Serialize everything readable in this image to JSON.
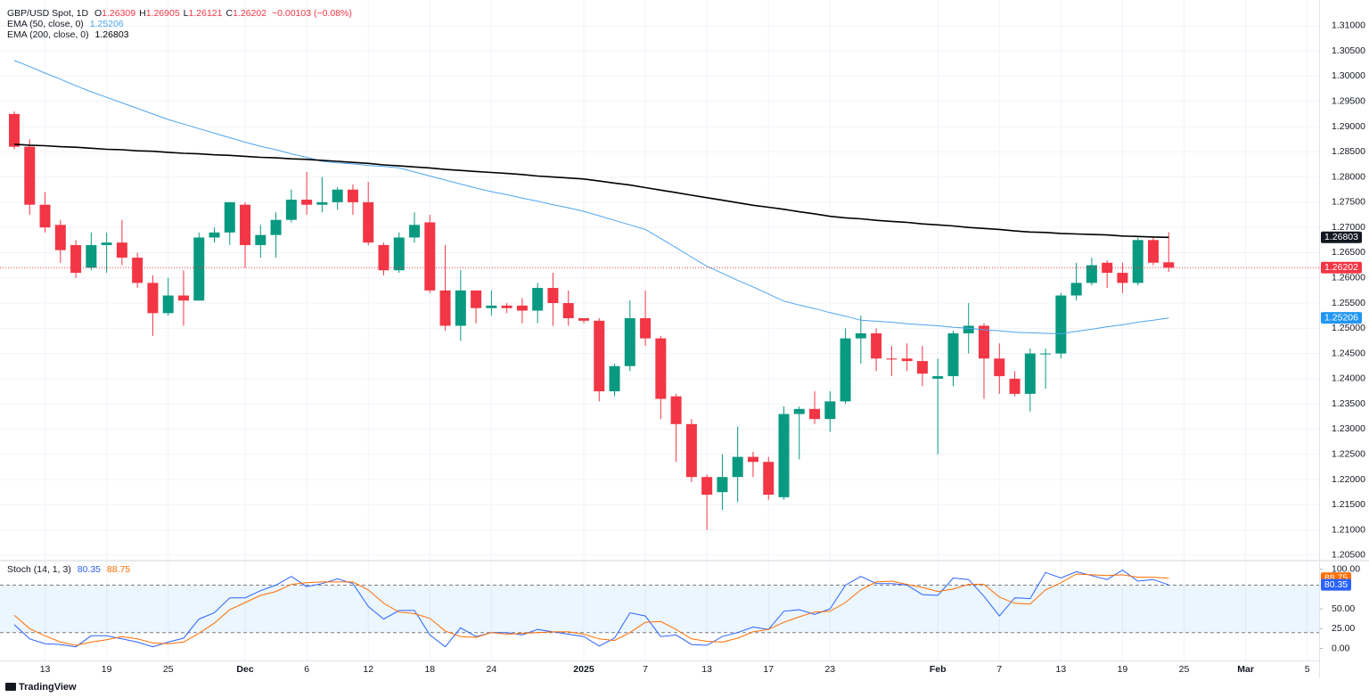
{
  "branding": "TradingView",
  "chart_data": [
    {
      "type": "candlestick",
      "title": "GBP/USD Spot, 1D",
      "ohlc_legend": [
        {
          "key": "O",
          "value": "1.26309"
        },
        {
          "key": "H",
          "value": "1.26905"
        },
        {
          "key": "L",
          "value": "1.26121"
        },
        {
          "key": "C",
          "value": "1.26202"
        }
      ],
      "change": "−0.00103 (−0.08%)",
      "up_color": "#089981",
      "down_color": "#f23645",
      "ylim": [
        1.2041,
        1.3151
      ],
      "yticks": [
        {
          "value": 1.205,
          "label": "1.20500"
        },
        {
          "value": 1.21,
          "label": "1.21000"
        },
        {
          "value": 1.215,
          "label": "1.21500"
        },
        {
          "value": 1.22,
          "label": "1.22000"
        },
        {
          "value": 1.225,
          "label": "1.22500"
        },
        {
          "value": 1.23,
          "label": "1.23000"
        },
        {
          "value": 1.235,
          "label": "1.23500"
        },
        {
          "value": 1.24,
          "label": "1.24000"
        },
        {
          "value": 1.245,
          "label": "1.24500"
        },
        {
          "value": 1.25,
          "label": "1.25000"
        },
        {
          "value": 1.255,
          "label": "1.25500"
        },
        {
          "value": 1.26,
          "label": "1.26000"
        },
        {
          "value": 1.265,
          "label": "1.26500"
        },
        {
          "value": 1.27,
          "label": "1.27000"
        },
        {
          "value": 1.275,
          "label": "1.27500"
        },
        {
          "value": 1.28,
          "label": "1.28000"
        },
        {
          "value": 1.285,
          "label": "1.28500"
        },
        {
          "value": 1.29,
          "label": "1.29000"
        },
        {
          "value": 1.295,
          "label": "1.29500"
        },
        {
          "value": 1.3,
          "label": "1.30000"
        },
        {
          "value": 1.305,
          "label": "1.30500"
        },
        {
          "value": 1.31,
          "label": "1.31000"
        }
      ],
      "grid": true,
      "open": [
        1.2925,
        1.286,
        1.2745,
        1.2705,
        1.2665,
        1.262,
        1.2665,
        1.267,
        1.264,
        1.259,
        1.253,
        1.2565,
        1.2555,
        1.268,
        1.269,
        1.2745,
        1.2665,
        1.2685,
        1.2715,
        1.2755,
        1.2745,
        1.275,
        1.2775,
        1.275,
        1.2665,
        1.2615,
        1.268,
        1.271,
        1.2575,
        1.2505,
        1.2575,
        1.254,
        1.2545,
        1.2545,
        1.2535,
        1.258,
        1.255,
        1.252,
        1.2515,
        1.2375,
        1.2425,
        1.252,
        1.248,
        1.2365,
        1.231,
        1.2205,
        1.2175,
        1.2205,
        1.2245,
        1.2235,
        1.2165,
        1.233,
        1.234,
        1.232,
        1.2355,
        1.248,
        1.249,
        1.244,
        1.244,
        1.2435,
        1.24,
        1.2405,
        1.249,
        1.2505,
        1.244,
        1.24,
        1.237,
        1.245,
        1.245,
        1.2565,
        1.259,
        1.263,
        1.261,
        1.259,
        1.2675,
        1.26309,
        null,
        null,
        null,
        null,
        null,
        null,
        null,
        null,
        null
      ],
      "high": [
        1.293,
        1.2875,
        1.277,
        1.2715,
        1.2675,
        1.269,
        1.269,
        1.2715,
        1.265,
        1.2605,
        1.26,
        1.2615,
        1.269,
        1.27,
        1.275,
        1.275,
        1.2705,
        1.273,
        1.2775,
        1.281,
        1.28,
        1.278,
        1.2785,
        1.279,
        1.267,
        1.269,
        1.273,
        1.2725,
        1.2665,
        1.2615,
        1.2575,
        1.2575,
        1.255,
        1.256,
        1.259,
        1.261,
        1.2575,
        1.252,
        1.252,
        1.243,
        1.2555,
        1.2575,
        1.2485,
        1.237,
        1.232,
        1.221,
        1.225,
        1.2305,
        1.2255,
        1.2245,
        1.2345,
        1.2345,
        1.2375,
        1.2375,
        1.25,
        1.2525,
        1.25,
        1.2465,
        1.247,
        1.2465,
        1.244,
        1.2495,
        1.255,
        1.251,
        1.247,
        1.2415,
        1.246,
        1.246,
        1.257,
        1.263,
        1.264,
        1.2635,
        1.263,
        1.268,
        1.268,
        1.26905,
        null,
        null,
        null,
        null,
        null,
        null,
        null,
        null,
        null
      ],
      "low": [
        1.2855,
        1.2725,
        1.269,
        1.263,
        1.26,
        1.2615,
        1.261,
        1.2625,
        1.258,
        1.2485,
        1.2525,
        1.2505,
        1.2555,
        1.267,
        1.2665,
        1.262,
        1.264,
        1.264,
        1.271,
        1.2725,
        1.273,
        1.2735,
        1.2725,
        1.2665,
        1.2605,
        1.261,
        1.267,
        1.257,
        1.2495,
        1.2475,
        1.251,
        1.2525,
        1.253,
        1.251,
        1.251,
        1.2505,
        1.2505,
        1.251,
        1.2355,
        1.2365,
        1.2415,
        1.2465,
        1.232,
        1.2235,
        1.2195,
        1.21,
        1.214,
        1.2155,
        1.2205,
        1.216,
        1.216,
        1.224,
        1.231,
        1.2295,
        1.235,
        1.243,
        1.2415,
        1.2405,
        1.2415,
        1.2385,
        1.225,
        1.2385,
        1.245,
        1.236,
        1.237,
        1.2365,
        1.2335,
        1.238,
        1.244,
        1.2555,
        1.2585,
        1.258,
        1.257,
        1.2585,
        1.2625,
        1.26121,
        null,
        null,
        null,
        null,
        null,
        null,
        null,
        null,
        null
      ],
      "close": [
        1.286,
        1.2745,
        1.27,
        1.2655,
        1.261,
        1.2665,
        1.267,
        1.264,
        1.259,
        1.253,
        1.2565,
        1.2555,
        1.268,
        1.269,
        1.275,
        1.2665,
        1.2685,
        1.2715,
        1.2755,
        1.2745,
        1.275,
        1.2775,
        1.275,
        1.267,
        1.2615,
        1.268,
        1.2705,
        1.2575,
        1.2505,
        1.2575,
        1.254,
        1.2545,
        1.254,
        1.2535,
        1.258,
        1.255,
        1.252,
        1.2515,
        1.2375,
        1.2425,
        1.252,
        1.248,
        1.236,
        1.231,
        1.2205,
        1.217,
        1.2205,
        1.2245,
        1.2235,
        1.217,
        1.233,
        1.234,
        1.232,
        1.2355,
        1.248,
        1.249,
        1.244,
        1.2438,
        1.2435,
        1.241,
        1.2405,
        1.249,
        1.2505,
        1.244,
        1.2405,
        1.237,
        1.245,
        1.245,
        1.2565,
        1.259,
        1.2625,
        1.261,
        1.259,
        1.2675,
        1.263,
        1.26202,
        null,
        null,
        null,
        null,
        null,
        null,
        null,
        null,
        null
      ],
      "overlays": [
        {
          "name": "EMA (50, close, 0)",
          "value_text": "1.25206",
          "color": "#4ea4ee",
          "values": [
            1.3031,
            1.3019,
            1.3006,
            1.2994,
            1.2981,
            1.2969,
            1.2958,
            1.2947,
            1.2936,
            1.2925,
            1.2914,
            1.2905,
            1.2896,
            1.2887,
            1.2878,
            1.2869,
            1.2861,
            1.2854,
            1.2846,
            1.2839,
            1.2831,
            1.2828,
            1.2826,
            1.2823,
            1.2821,
            1.2818,
            1.281,
            1.2802,
            1.2794,
            1.2786,
            1.2778,
            1.2771,
            1.2765,
            1.2758,
            1.2752,
            1.2745,
            1.2739,
            1.2732,
            1.2723,
            1.2714,
            1.2705,
            1.2696,
            1.2678,
            1.266,
            1.2641,
            1.2623,
            1.2609,
            1.2595,
            1.2582,
            1.2568,
            1.2554,
            1.2546,
            1.2539,
            1.2531,
            1.2524,
            1.2516,
            1.2514,
            1.2512,
            1.2509,
            1.2507,
            1.2505,
            1.2502,
            1.25,
            1.2497,
            1.2495,
            1.2492,
            1.2491,
            1.249,
            1.2489,
            1.2494,
            1.2498,
            1.2503,
            1.2507,
            1.2512,
            1.2516,
            1.25206,
            null,
            null,
            null,
            null,
            null,
            null,
            null,
            null,
            null
          ]
        },
        {
          "name": "EMA (200, close, 0)",
          "value_text": "1.26803",
          "color": "#000000",
          "values": [
            1.2865,
            1.2863,
            1.2862,
            1.286,
            1.2859,
            1.2857,
            1.2855,
            1.2854,
            1.2852,
            1.2851,
            1.2849,
            1.2847,
            1.2846,
            1.2844,
            1.2843,
            1.2841,
            1.2839,
            1.2838,
            1.2836,
            1.2835,
            1.2833,
            1.2831,
            1.2829,
            1.2827,
            1.2824,
            1.2822,
            1.282,
            1.2818,
            1.2815,
            1.2813,
            1.2811,
            1.2809,
            1.2807,
            1.2805,
            1.2802,
            1.28,
            1.2798,
            1.2796,
            1.2792,
            1.2788,
            1.2784,
            1.2779,
            1.2774,
            1.2769,
            1.2764,
            1.2759,
            1.2754,
            1.2749,
            1.2744,
            1.274,
            1.2736,
            1.2731,
            1.2727,
            1.2722,
            1.2719,
            1.2717,
            1.2714,
            1.2712,
            1.271,
            1.2707,
            1.2705,
            1.2703,
            1.27,
            1.2698,
            1.2696,
            1.2693,
            1.2691,
            1.269,
            1.2688,
            1.2687,
            1.2686,
            1.2685,
            1.2683,
            1.2682,
            1.2681,
            1.26803,
            null,
            null,
            null,
            null,
            null,
            null,
            null,
            null,
            null
          ]
        }
      ]
    },
    {
      "type": "line",
      "title": "Stoch (14, 1, 3)",
      "categories": [
        null,
        null,
        "13",
        null,
        null,
        null,
        "19",
        null,
        null,
        null,
        "25",
        null,
        null,
        null,
        null,
        "Dec",
        null,
        null,
        null,
        "6",
        null,
        null,
        null,
        "12",
        null,
        null,
        null,
        "18",
        null,
        null,
        null,
        "24",
        null,
        null,
        null,
        null,
        null,
        "2025",
        null,
        null,
        null,
        "7",
        null,
        null,
        null,
        "13",
        null,
        null,
        null,
        "17",
        null,
        null,
        null,
        "23",
        null,
        null,
        null,
        null,
        null,
        null,
        "Feb",
        null,
        null,
        null,
        "7",
        null,
        null,
        null,
        "13",
        null,
        null,
        null,
        "19",
        null,
        null,
        null,
        "25",
        null,
        null,
        null,
        "Mar",
        null,
        null,
        null,
        "5"
      ],
      "ylim": [
        -15.2,
        109.8
      ],
      "yticks": [
        {
          "value": 0,
          "label": "0.00"
        },
        {
          "value": 25,
          "label": "25.00"
        },
        {
          "value": 50,
          "label": "50.00"
        },
        {
          "value": 100,
          "label": "100.00"
        }
      ],
      "band": [
        20,
        80
      ],
      "band_color": "#2196f3",
      "series": [
        {
          "value_text": "80.35",
          "color": "#2962ff",
          "values": [
            30,
            12,
            6,
            5,
            2,
            16,
            16,
            12,
            8,
            2,
            8,
            13,
            37,
            45,
            64,
            64,
            73,
            80,
            91,
            78,
            82,
            88,
            82,
            53,
            37,
            48,
            48,
            17,
            2,
            26,
            15,
            20,
            20,
            17,
            24,
            21,
            18,
            15,
            3,
            13,
            45,
            41,
            15,
            17,
            5,
            4,
            15,
            20,
            27,
            24,
            47,
            49,
            43,
            50,
            80,
            91,
            82,
            82,
            80,
            68,
            67,
            89,
            87,
            66,
            41,
            64,
            63,
            96,
            89,
            97,
            92,
            87,
            99,
            85,
            87,
            80.35,
            null,
            null,
            null,
            null,
            null,
            null,
            null,
            null,
            null
          ]
        },
        {
          "value_text": "88.75",
          "color": "#ff6d00",
          "values": [
            42,
            25,
            16,
            8,
            4,
            8,
            11,
            15,
            12,
            7,
            6,
            8,
            19,
            32,
            49,
            58,
            67,
            72,
            81,
            83,
            84,
            84,
            84,
            74,
            57,
            46,
            44,
            38,
            22,
            15,
            14,
            20,
            18,
            19,
            20,
            21,
            21,
            18,
            12,
            10,
            20,
            33,
            34,
            24,
            12,
            9,
            8,
            13,
            21,
            24,
            33,
            40,
            46,
            47,
            58,
            74,
            84,
            85,
            81,
            77,
            72,
            75,
            81,
            81,
            65,
            57,
            56,
            74,
            83,
            94,
            93,
            92,
            93,
            90,
            90,
            88.75,
            null,
            null,
            null,
            null,
            null,
            null,
            null,
            null,
            null
          ]
        }
      ]
    }
  ]
}
